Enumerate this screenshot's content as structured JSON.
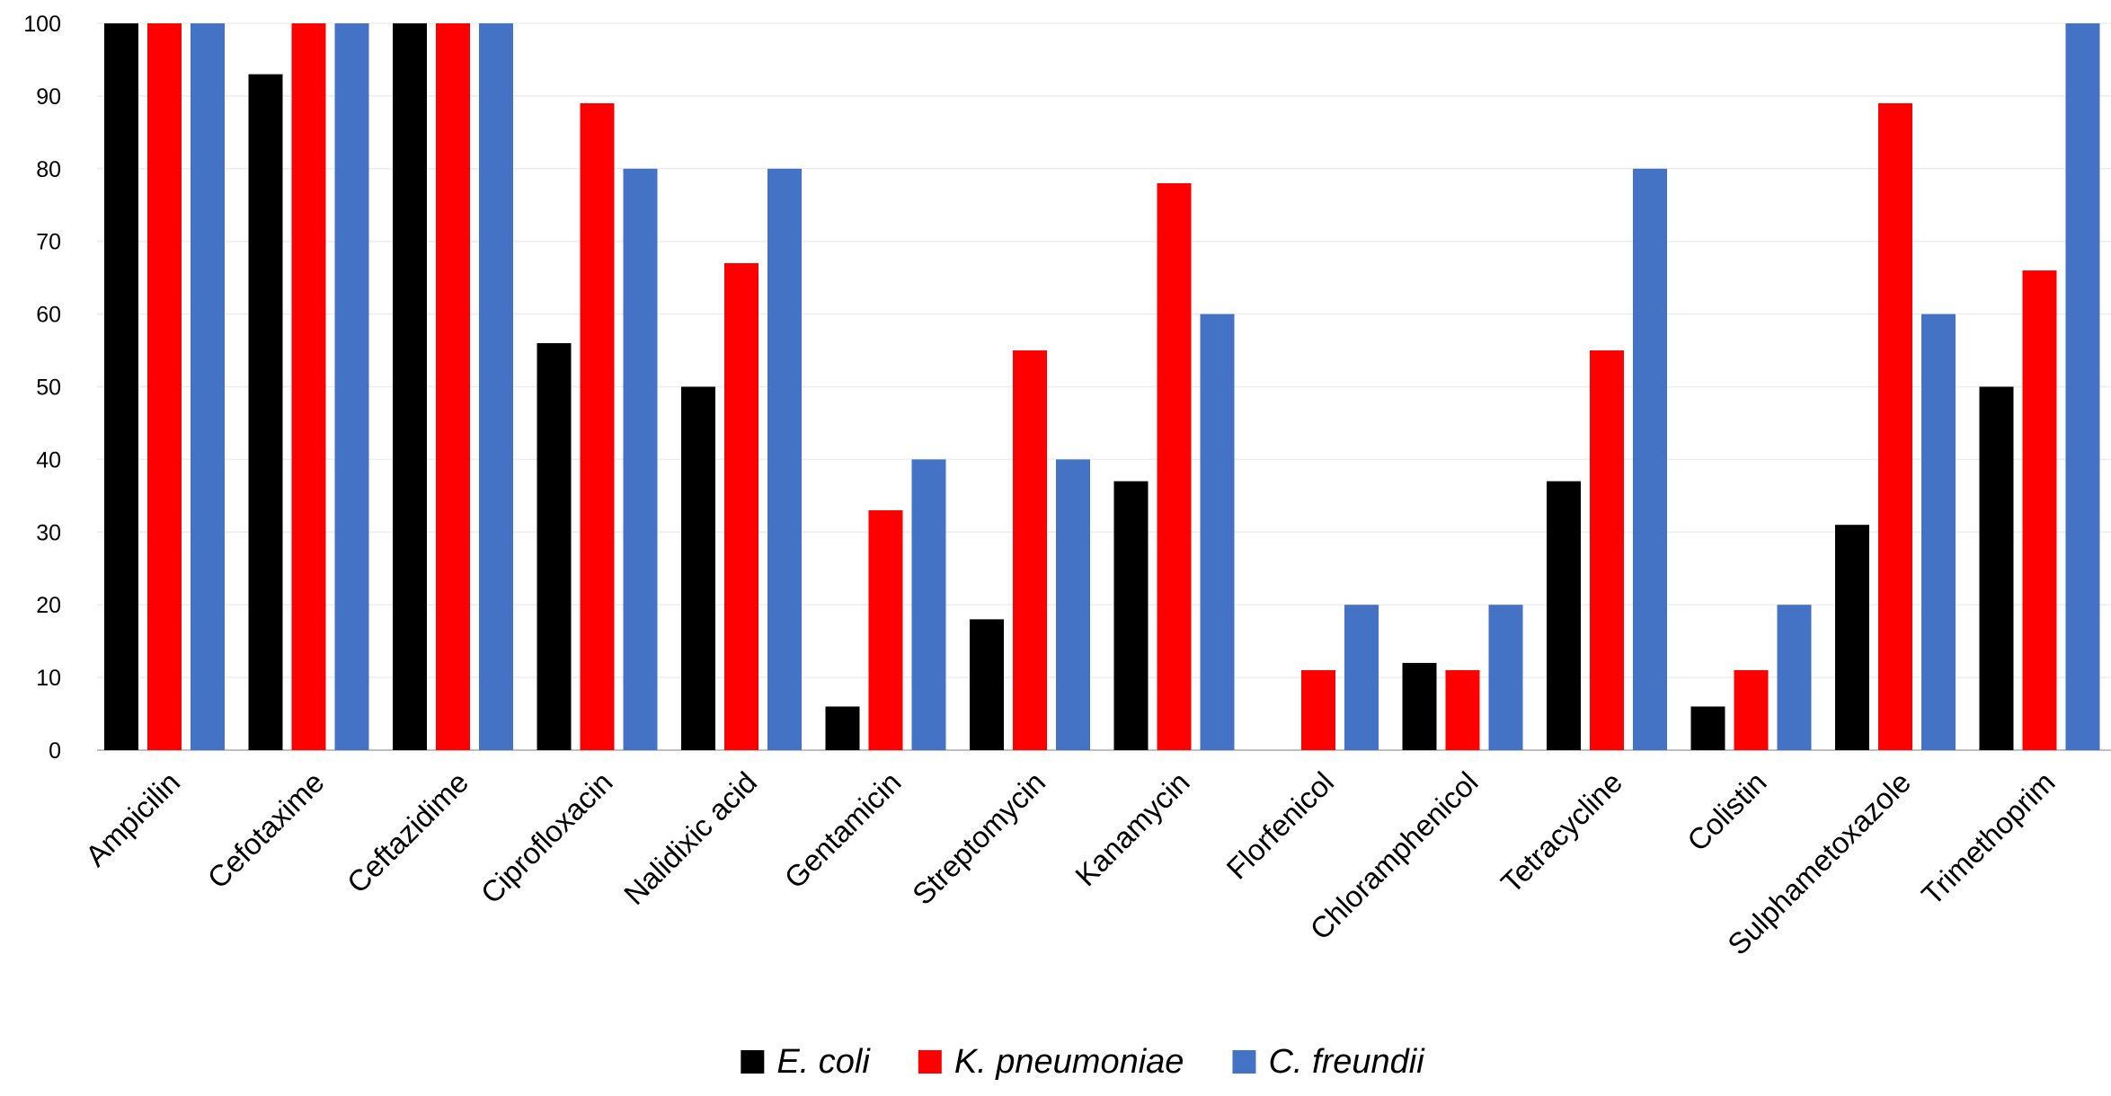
{
  "chart_data": {
    "type": "bar",
    "categories": [
      "Ampicilin",
      "Cefotaxime",
      "Ceftazidime",
      "Ciprofloxacin",
      "Nalidixic acid",
      "Gentamicin",
      "Streptomycin",
      "Kanamycin",
      "Florfenicol",
      "Chloramphenicol",
      "Tetracycline",
      "Colistin",
      "Sulphametoxazole",
      "Trimethoprim"
    ],
    "series": [
      {
        "name": "E. coli",
        "color": "#000000",
        "values": [
          100,
          93,
          100,
          56,
          50,
          6,
          18,
          37,
          0,
          12,
          37,
          6,
          31,
          50
        ]
      },
      {
        "name": "K. pneumoniae",
        "color": "#ff0000",
        "values": [
          100,
          100,
          100,
          89,
          67,
          33,
          55,
          78,
          11,
          11,
          55,
          11,
          89,
          66
        ]
      },
      {
        "name": "C. freundii",
        "color": "#4472c4",
        "values": [
          100,
          100,
          100,
          80,
          80,
          40,
          40,
          60,
          20,
          20,
          80,
          20,
          60,
          100
        ]
      }
    ],
    "ylim": [
      0,
      100
    ],
    "yticks": [
      "0",
      "10",
      "20",
      "30",
      "40",
      "50",
      "60",
      "70",
      "80",
      "90",
      "100"
    ],
    "grid": true,
    "legend_position": "bottom",
    "title": "",
    "xlabel": "",
    "ylabel": ""
  }
}
